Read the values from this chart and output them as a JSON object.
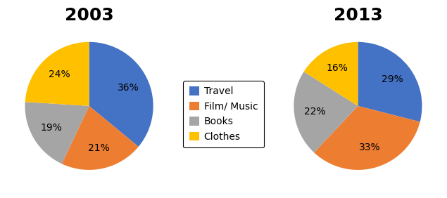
{
  "title_2003": "2003",
  "title_2013": "2013",
  "labels": [
    "Travel",
    "Film/ Music",
    "Books",
    "Clothes"
  ],
  "values_2003": [
    36,
    21,
    19,
    24
  ],
  "values_2013": [
    29,
    33,
    22,
    16
  ],
  "colors": [
    "#4472C4",
    "#ED7D31",
    "#A5A5A5",
    "#FFC000"
  ],
  "startangle_2003": 90,
  "startangle_2013": 90,
  "title_fontsize": 18,
  "pct_fontsize": 10,
  "legend_fontsize": 10,
  "background_color": "#FFFFFF"
}
